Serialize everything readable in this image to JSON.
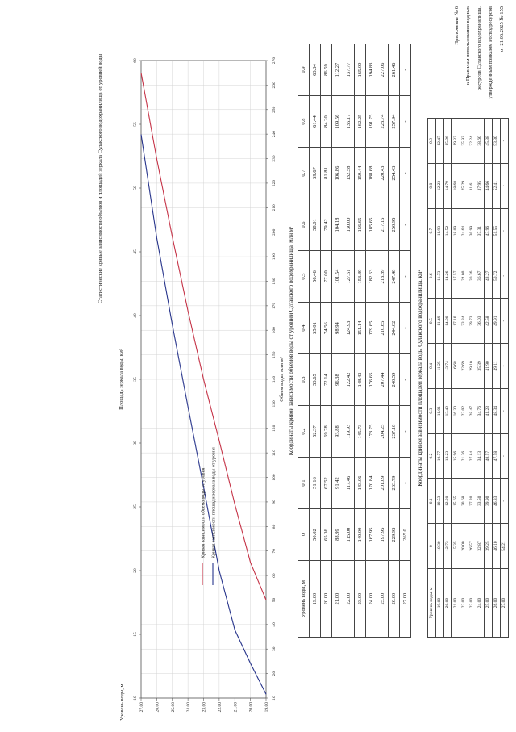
{
  "title": "Статистические кривые зависимости объемов и площадей зеркала Сулакского водохранилища от уровней воды",
  "annex": {
    "lines": [
      "Приложение № 6",
      "к Правилам использования водных",
      "ресурсов Сулакского водохранилища,",
      "утвержденным приказом Росводресурсов",
      "от 21.06.2025 № 155"
    ]
  },
  "chart_data": {
    "type": "line",
    "title": "Статистические кривые зависимости объемов и площадей зеркала Сулакского водохранилища от уровней воды",
    "grid": true,
    "legend_position": "inside-upper-left",
    "axes": {
      "level": {
        "label": "Уровень воды, м",
        "min": 19,
        "max": 27,
        "step": 1
      },
      "volume": {
        "label": "Объем воды, млн м³",
        "min": 10,
        "max": 270,
        "step": 10
      },
      "area": {
        "label": "Площадь зеркала воды, км²",
        "min": 10,
        "max": 60,
        "step": 5
      }
    },
    "series": [
      {
        "name": "Кривая зависимости объема воды от уровня",
        "axis": "volume",
        "color": "#c53347",
        "points": [
          [
            19,
            50.02
          ],
          [
            20,
            65.36
          ],
          [
            21,
            88.99
          ],
          [
            22,
            115.0
          ],
          [
            23,
            140.0
          ],
          [
            24,
            167.95
          ],
          [
            25,
            197.95
          ],
          [
            26,
            229.93
          ],
          [
            27,
            265.0
          ]
        ]
      },
      {
        "name": "Кривая зависимости площади зеркала воды от уровня",
        "axis": "area",
        "color": "#27348b",
        "points": [
          [
            19,
            10.3
          ],
          [
            20,
            12.73
          ],
          [
            21,
            15.35
          ],
          [
            22,
            20.0
          ],
          [
            23,
            26.57
          ],
          [
            24,
            32.87
          ],
          [
            25,
            39.25
          ],
          [
            26,
            46.1
          ],
          [
            27,
            54.21
          ]
        ]
      }
    ]
  },
  "tables": [
    {
      "caption": "Координаты кривой зависимости объемов воды от уровней Сулакского водохранилища, млн м³",
      "row_header": "Уровень воды, м",
      "columns": [
        "0",
        "0.1",
        "0.2",
        "0.3",
        "0.4",
        "0.5",
        "0.6",
        "0.7",
        "0.8",
        "0.9"
      ],
      "rows": [
        {
          "level": "19.00",
          "values": [
            "50.02",
            "51.16",
            "52.37",
            "53.65",
            "55.01",
            "56.46",
            "58.01",
            "59.67",
            "61.44",
            "63.34"
          ]
        },
        {
          "level": "20.00",
          "values": [
            "65.36",
            "67.52",
            "69.78",
            "72.14",
            "74.56",
            "77.00",
            "79.42",
            "81.81",
            "84.20",
            "86.59"
          ]
        },
        {
          "level": "21.00",
          "values": [
            "88.99",
            "91.42",
            "93.88",
            "96.38",
            "98.94",
            "101.54",
            "104.18",
            "106.86",
            "109.56",
            "112.27"
          ]
        },
        {
          "level": "22.00",
          "values": [
            "115.00",
            "117.46",
            "119.93",
            "122.42",
            "124.93",
            "127.51",
            "130.00",
            "132.58",
            "135.17",
            "137.77"
          ]
        },
        {
          "level": "23.00",
          "values": [
            "140.00",
            "143.06",
            "145.73",
            "148.43",
            "151.14",
            "153.89",
            "156.65",
            "159.44",
            "162.25",
            "165.00"
          ]
        },
        {
          "level": "24.00",
          "values": [
            "167.95",
            "170.84",
            "173.75",
            "176.65",
            "179.65",
            "182.63",
            "185.65",
            "188.68",
            "191.75",
            "194.83"
          ]
        },
        {
          "level": "25.00",
          "values": [
            "197.95",
            "201.09",
            "204.25",
            "207.44",
            "210.65",
            "213.89",
            "217.15",
            "220.43",
            "223.74",
            "227.06"
          ]
        },
        {
          "level": "26.00",
          "values": [
            "229.93",
            "233.79",
            "237.18",
            "240.59",
            "244.02",
            "247.48",
            "250.95",
            "254.43",
            "257.94",
            "261.46"
          ]
        },
        {
          "level": "27.00",
          "values": [
            "265.0",
            "-",
            "-",
            "-",
            "-",
            "-",
            "-",
            "-",
            "-",
            "-"
          ]
        }
      ]
    },
    {
      "caption": "Координаты кривой зависимости площадей зеркала воды Сулакского водохранилища, км²",
      "row_header": "Уровень воды, м",
      "columns": [
        "0",
        "0.1",
        "0.2",
        "0.3",
        "0.4",
        "0.5",
        "0.6",
        "0.7",
        "0.8",
        "0.9"
      ],
      "rows": [
        {
          "level": "19.00",
          "values": [
            "10.30",
            "10.53",
            "10.77",
            "11.01",
            "11.25",
            "11.49",
            "11.73",
            "11.98",
            "12.23",
            "12.47"
          ]
        },
        {
          "level": "20.00",
          "values": [
            "12.73",
            "12.98",
            "13.23",
            "13.49",
            "13.74",
            "14.00",
            "14.26",
            "14.52",
            "14.79",
            "15.06"
          ]
        },
        {
          "level": "21.00",
          "values": [
            "15.35",
            "15.65",
            "15.96",
            "16.30",
            "16.68",
            "17.10",
            "17.57",
            "18.09",
            "18.68",
            "19.32"
          ]
        },
        {
          "level": "22.00",
          "values": [
            "20.00",
            "20.68",
            "21.36",
            "22.02",
            "22.69",
            "23.34",
            "24.00",
            "24.64",
            "25.29",
            "25.93"
          ]
        },
        {
          "level": "23.00",
          "values": [
            "26.57",
            "27.20",
            "27.84",
            "28.47",
            "29.10",
            "29.73",
            "30.36",
            "30.99",
            "31.61",
            "32.24"
          ]
        },
        {
          "level": "24.00",
          "values": [
            "32.87",
            "33.50",
            "34.13",
            "34.76",
            "35.39",
            "36.03",
            "36.67",
            "37.31",
            "37.95",
            "38.60"
          ]
        },
        {
          "level": "25.00",
          "values": [
            "39.25",
            "39.90",
            "40.57",
            "41.23",
            "41.90",
            "42.58",
            "43.27",
            "43.96",
            "44.66",
            "45.38"
          ]
        },
        {
          "level": "26.00",
          "values": [
            "46.10",
            "46.83",
            "47.58",
            "48.34",
            "49.11",
            "49.91",
            "50.72",
            "51.55",
            "52.41",
            "53.30"
          ]
        },
        {
          "level": "27.00",
          "values": [
            "54.21",
            "-",
            "-",
            "-",
            "-",
            "-",
            "-",
            "-",
            "-",
            "-"
          ]
        }
      ]
    }
  ]
}
